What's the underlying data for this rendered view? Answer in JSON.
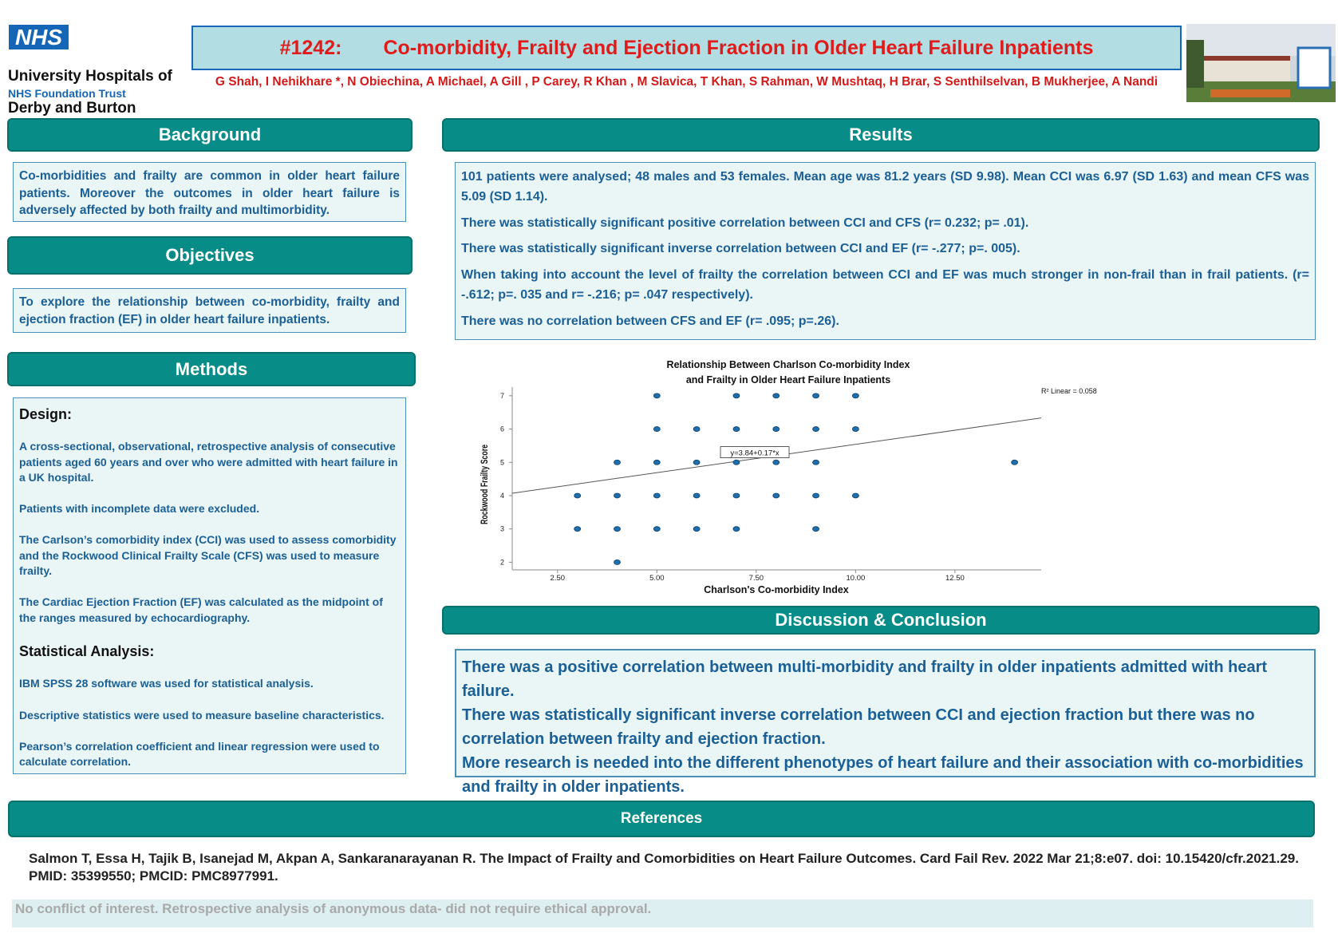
{
  "header": {
    "logo": "NHS",
    "org_lines": [
      "University Hospitals of",
      "Derby and Burton"
    ],
    "trust": "NHS Foundation Trust",
    "id": "#1242:",
    "title": "Co-morbidity, Frailty and Ejection Fraction in Older Heart Failure Inpatients",
    "authors": "G Shah, I Nehikhare *, N Obiechina, A Michael, A Gill , P Carey, R Khan , M Slavica, T Khan, S Rahman, W Mushtaq, H Brar, S Senthilselvan, B Mukherjee, A Nandi"
  },
  "background": {
    "heading": "Background",
    "text": "Co-morbidities and frailty are common in older heart failure patients. Moreover the outcomes in older heart failure is adversely affected by both frailty and multimorbidity."
  },
  "objectives": {
    "heading": "Objectives",
    "text": "To explore the relationship between co-morbidity, frailty and ejection fraction (EF) in older heart failure inpatients."
  },
  "methods": {
    "heading": "Methods",
    "design_heading": "Design:",
    "design": [
      "A cross-sectional, observational, retrospective analysis of consecutive patients aged 60 years and over who were admitted with heart failure in a UK hospital.",
      "Patients with incomplete data were excluded.",
      "The Carlson’s comorbidity index (CCI) was used to assess comorbidity and the Rockwood Clinical Frailty Scale (CFS) was used to measure frailty.",
      "The Cardiac Ejection Fraction (EF) was calculated as the midpoint of the ranges measured by echocardiography."
    ],
    "stats_heading": "Statistical  Analysis:",
    "stats": [
      "IBM SPSS 28 software was used for statistical analysis.",
      "Descriptive statistics were used to measure baseline characteristics.",
      " Pearson’s correlation coefficient and linear regression were used to calculate correlation."
    ]
  },
  "results": {
    "heading": "Results",
    "paragraphs": [
      "101 patients were analysed; 48 males and 53 females. Mean age was 81.2 years (SD 9.98). Mean CCI was 6.97 (SD 1.63) and mean CFS was 5.09 (SD 1.14).",
      "There was statistically significant positive correlation between CCI and CFS (r= 0.232; p= .01).",
      "There was statistically significant inverse correlation between CCI and EF (r= -.277; p=. 005).",
      "When taking into account the level of frailty the correlation between CCI and EF was much stronger in non-frail than in frail patients. (r= -.612; p=. 035 and r= -.216; p= .047 respectively).",
      "There was no correlation between CFS and EF (r= .095; p=.26)."
    ]
  },
  "chart_data": {
    "type": "scatter",
    "title_lines": [
      "Relationship Between  Charlson  Co-morbidity Index",
      "and  Frailty in Older Heart Failure Inpatients"
    ],
    "x_label": "Charlson's Co-morbidity Index",
    "y_label": "Rockwood Frailty Score",
    "color": "#1f6fae",
    "x": [
      5,
      7,
      8,
      9,
      10,
      5,
      6,
      7,
      8,
      9,
      10,
      4,
      5,
      6,
      7,
      8,
      9,
      14,
      3,
      4,
      5,
      6,
      7,
      8,
      9,
      10,
      3,
      4,
      5,
      6,
      7,
      9,
      4
    ],
    "values": [
      7,
      7,
      7,
      7,
      7,
      6,
      6,
      6,
      6,
      6,
      6,
      5,
      5,
      5,
      5,
      5,
      5,
      5,
      4,
      4,
      4,
      4,
      4,
      4,
      4,
      4,
      3,
      3,
      3,
      3,
      3,
      3,
      2
    ],
    "xlim": [
      1.36,
      14.67
    ],
    "ylim": [
      1.77,
      7.26
    ],
    "xticks": [
      {
        "value": 2.5,
        "label": "2.50"
      },
      {
        "value": 5,
        "label": "5.00"
      },
      {
        "value": 7.5,
        "label": "7.50"
      },
      {
        "value": 10,
        "label": "10.00"
      },
      {
        "value": 12.5,
        "label": "12.50"
      }
    ],
    "yticks": [
      2,
      3,
      4,
      5,
      6,
      7
    ],
    "fit": {
      "intercept": 3.84,
      "slope": 0.17
    },
    "fit_label": "y=3.84+0.17*x",
    "r2_label": "R² Linear = 0.058"
  },
  "discussion": {
    "heading": "Discussion & Conclusion",
    "paragraphs": [
      "There was a positive correlation between multi-morbidity and frailty in older inpatients admitted with heart failure.",
      "There was statistically significant inverse correlation between CCI and ejection fraction but there was no correlation between frailty and ejection fraction.",
      "More research is needed into the different phenotypes of heart failure and their association with co-morbidities and frailty in older inpatients."
    ]
  },
  "references": {
    "heading": "References",
    "items": [
      "Salmon T, Essa H, Tajik B, Isanejad M, Akpan A, Sankaranarayanan R. The Impact of Frailty and Comorbidities on Heart Failure Outcomes. Card Fail Rev. 2022 Mar 21;8:e07. doi: 10.15420/cfr.2021.29. PMID: 35399550; PMCID: PMC8977991."
    ]
  },
  "footer": "No conflict of interest. Retrospective analysis of anonymous data- did not require ethical approval."
}
